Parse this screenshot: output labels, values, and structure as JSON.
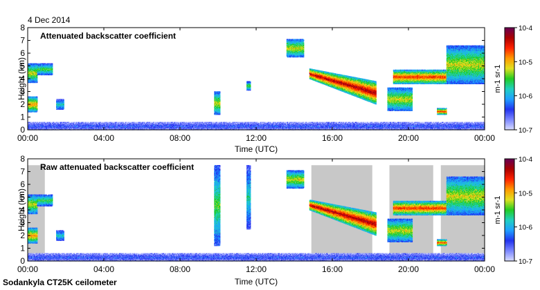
{
  "date_label": "4 Dec 2014",
  "instrument_label": "Sodankyla CT25K ceilometer",
  "colors": {
    "background": "#ffffff",
    "frame": "#000000",
    "grey_mask": "#c8c8c8",
    "scale": [
      "#d8dcff",
      "#7b86ff",
      "#2233ee",
      "#1f9fff",
      "#20d0c0",
      "#22cc22",
      "#e0e020",
      "#ff9900",
      "#ff2200",
      "#aa0000",
      "#660055"
    ]
  },
  "chart_data": [
    {
      "type": "heatmap",
      "title": "Attenuated backscatter coefficient",
      "xlabel": "Time (UTC)",
      "ylabel": "Height (km)",
      "xlim": [
        0,
        24
      ],
      "ylim": [
        0,
        8
      ],
      "xticks": [
        0,
        4,
        8,
        12,
        16,
        20,
        24
      ],
      "xtick_labels": [
        "00:00",
        "04:00",
        "08:00",
        "12:00",
        "16:00",
        "20:00",
        "00:00"
      ],
      "yticks": [
        0,
        1,
        2,
        3,
        4,
        5,
        6,
        7,
        8
      ],
      "ytick_labels": [
        "0",
        "1",
        "2",
        "3",
        "4",
        "5",
        "6",
        "7",
        "8"
      ],
      "colorbar": {
        "scale": "log",
        "range": [
          1e-07,
          0.0001
        ],
        "ticks": [
          1e-07,
          1e-06,
          1e-05,
          0.0001
        ],
        "tick_labels": [
          "10-7",
          "10-6",
          "10-5",
          "10-4"
        ],
        "label": "m-1 sr-1"
      },
      "features": [
        {
          "name": "low cloud layer",
          "t": [
            0.0,
            0.5
          ],
          "h": [
            3.7,
            5.2
          ],
          "level": 6
        },
        {
          "name": "low cloud layer",
          "t": [
            0.5,
            1.3
          ],
          "h": [
            4.3,
            5.2
          ],
          "level": 5
        },
        {
          "name": "near-surface cloud",
          "t": [
            0.0,
            0.5
          ],
          "h": [
            1.4,
            2.6
          ],
          "level": 7
        },
        {
          "name": "near-surface cloud",
          "t": [
            1.5,
            1.9
          ],
          "h": [
            1.6,
            2.4
          ],
          "level": 4
        },
        {
          "name": "fall streak",
          "t": [
            9.8,
            10.1
          ],
          "h": [
            1.2,
            3.0
          ],
          "level": 6
        },
        {
          "name": "isolated cloud",
          "t": [
            11.5,
            11.7
          ],
          "h": [
            3.1,
            3.8
          ],
          "level": 5
        },
        {
          "name": "mid-level cloud",
          "t": [
            13.6,
            14.5
          ],
          "h": [
            5.7,
            7.1
          ],
          "level": 6
        },
        {
          "name": "descending cloud layer",
          "t": [
            14.8,
            18.3
          ],
          "h_start": [
            4.0,
            4.8
          ],
          "h_end": [
            2.0,
            3.8
          ],
          "level": 9
        },
        {
          "name": "low cloud",
          "t": [
            18.9,
            20.2
          ],
          "h": [
            1.5,
            3.3
          ],
          "level": 6
        },
        {
          "name": "mid-level cloud",
          "t": [
            19.2,
            22.0
          ],
          "h": [
            3.6,
            4.7
          ],
          "level": 8
        },
        {
          "name": "high cloud",
          "t": [
            22.0,
            24.0
          ],
          "h": [
            3.6,
            6.6
          ],
          "level": 6
        },
        {
          "name": "precipitation patch",
          "t": [
            21.5,
            22.0
          ],
          "h": [
            1.2,
            1.7
          ],
          "level": 8
        },
        {
          "name": "surface layer",
          "t": [
            0.0,
            24.0
          ],
          "h": [
            0.0,
            0.6
          ],
          "level": 2
        }
      ]
    },
    {
      "type": "heatmap",
      "title": "Raw attenuated backscatter coefficient",
      "xlabel": "Time (UTC)",
      "ylabel": "Height (km)",
      "xlim": [
        0,
        24
      ],
      "ylim": [
        0,
        8
      ],
      "xticks": [
        0,
        4,
        8,
        12,
        16,
        20,
        24
      ],
      "xtick_labels": [
        "00:00",
        "04:00",
        "08:00",
        "12:00",
        "16:00",
        "20:00",
        "00:00"
      ],
      "yticks": [
        0,
        1,
        2,
        3,
        4,
        5,
        6,
        7,
        8
      ],
      "ytick_labels": [
        "0",
        "1",
        "2",
        "3",
        "4",
        "5",
        "6",
        "7",
        "8"
      ],
      "colorbar": {
        "scale": "log",
        "range": [
          1e-07,
          0.0001
        ],
        "ticks": [
          1e-07,
          1e-06,
          1e-05,
          0.0001
        ],
        "tick_labels": [
          "10-7",
          "10-6",
          "10-5",
          "10-4"
        ],
        "label": "m-1 sr-1"
      },
      "noise_regions": [
        {
          "t": [
            14.9,
            18.1
          ],
          "h": [
            0.4,
            7.5
          ]
        },
        {
          "t": [
            19.0,
            21.3
          ],
          "h": [
            0.4,
            7.5
          ]
        },
        {
          "t": [
            21.7,
            24.0
          ],
          "h": [
            0.4,
            7.5
          ]
        },
        {
          "t": [
            0.0,
            0.9
          ],
          "h": [
            0.4,
            7.5
          ]
        }
      ],
      "features": [
        {
          "name": "low cloud layer",
          "t": [
            0.0,
            0.5
          ],
          "h": [
            3.7,
            5.2
          ],
          "level": 6
        },
        {
          "name": "low cloud layer",
          "t": [
            0.5,
            1.3
          ],
          "h": [
            4.3,
            5.2
          ],
          "level": 5
        },
        {
          "name": "near-surface cloud",
          "t": [
            0.0,
            0.5
          ],
          "h": [
            1.4,
            2.6
          ],
          "level": 7
        },
        {
          "name": "near-surface cloud",
          "t": [
            1.5,
            1.9
          ],
          "h": [
            1.6,
            2.4
          ],
          "level": 4
        },
        {
          "name": "fall streak",
          "t": [
            9.8,
            10.1
          ],
          "h": [
            1.2,
            7.5
          ],
          "level": 5
        },
        {
          "name": "isolated cloud",
          "t": [
            11.5,
            11.7
          ],
          "h": [
            2.5,
            7.5
          ],
          "level": 4
        },
        {
          "name": "mid-level cloud",
          "t": [
            13.6,
            14.5
          ],
          "h": [
            5.7,
            7.1
          ],
          "level": 6
        },
        {
          "name": "descending cloud layer",
          "t": [
            14.8,
            18.3
          ],
          "h_start": [
            4.0,
            4.8
          ],
          "h_end": [
            2.0,
            3.8
          ],
          "level": 9
        },
        {
          "name": "low cloud",
          "t": [
            18.9,
            20.2
          ],
          "h": [
            1.5,
            3.3
          ],
          "level": 6
        },
        {
          "name": "mid-level cloud",
          "t": [
            19.2,
            22.0
          ],
          "h": [
            3.6,
            4.7
          ],
          "level": 8
        },
        {
          "name": "high cloud",
          "t": [
            22.0,
            24.0
          ],
          "h": [
            3.6,
            6.6
          ],
          "level": 6
        },
        {
          "name": "precipitation patch",
          "t": [
            21.5,
            22.0
          ],
          "h": [
            1.2,
            1.7
          ],
          "level": 8
        },
        {
          "name": "surface layer",
          "t": [
            0.0,
            24.0
          ],
          "h": [
            0.0,
            0.6
          ],
          "level": 2
        }
      ]
    }
  ]
}
